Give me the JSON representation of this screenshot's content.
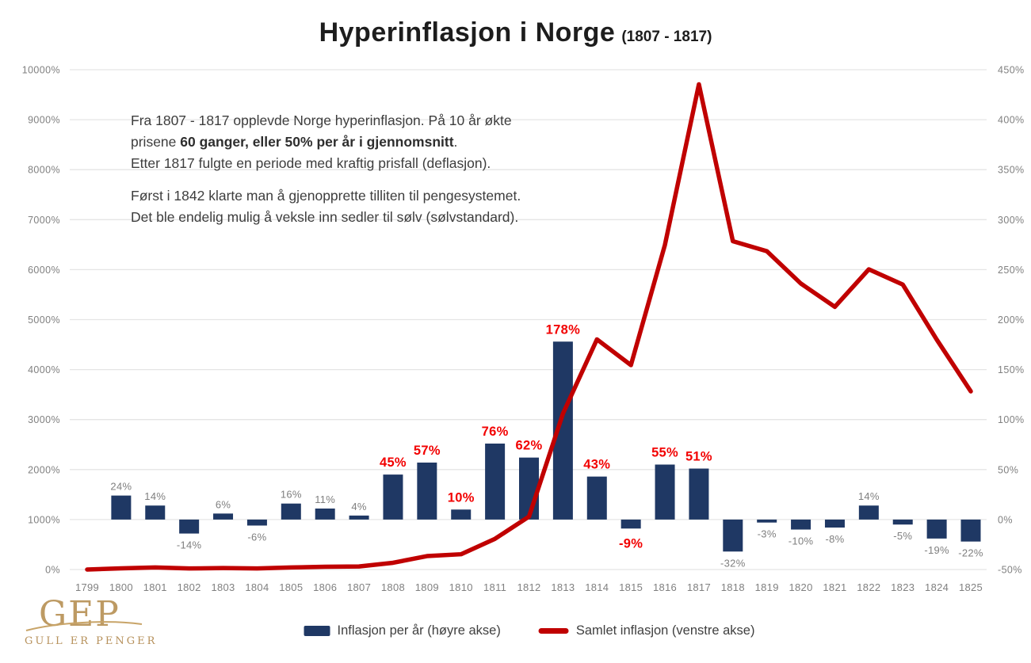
{
  "header": {
    "title": "Hyperinflasjon i Norge",
    "subtitle": "(1807 - 1817)"
  },
  "annotation": {
    "line1": "Fra 1807 - 1817 opplevde Norge hyperinflasjon. På 10 år økte",
    "line2_prefix": "prisene ",
    "line2_bold": "60 ganger, eller 50% per år i gjennomsnitt",
    "line2_suffix": ".",
    "line3": "Etter 1817 fulgte en periode med kraftig prisfall (deflasjon).",
    "line4": "Først i 1842 klarte man å gjenopprette tilliten til pengesystemet.",
    "line5": "Det ble endelig mulig å veksle inn sedler til sølv (sølvstandard)."
  },
  "legend": {
    "bar_label": "Inflasjon per år (høyre akse)",
    "line_label": "Samlet inflasjon (venstre akse)"
  },
  "logo": {
    "acronym": "GEP",
    "tagline": "GULL ER PENGER"
  },
  "colors": {
    "bar": "#1f3864",
    "line": "#c00000",
    "highlight_label": "#f20000",
    "muted_label": "#7f7f7f",
    "grid": "#e5e5e5",
    "axis_text": "#808080"
  },
  "chart_data": {
    "type": "bar+line combo",
    "title": "Hyperinflasjon i Norge (1807 - 1817)",
    "grid": "horizontal only",
    "legend_position": "bottom",
    "categories": [
      "1799",
      "1800",
      "1801",
      "1802",
      "1803",
      "1804",
      "1805",
      "1806",
      "1807",
      "1808",
      "1809",
      "1810",
      "1811",
      "1812",
      "1813",
      "1814",
      "1815",
      "1816",
      "1817",
      "1818",
      "1819",
      "1820",
      "1821",
      "1822",
      "1823",
      "1824",
      "1825"
    ],
    "series": [
      {
        "name": "Inflasjon per år (høyre akse)",
        "type": "bar",
        "axis": "right",
        "color": "#1f3864",
        "values": [
          null,
          24,
          14,
          -14,
          6,
          -6,
          16,
          11,
          4,
          45,
          57,
          10,
          76,
          62,
          178,
          43,
          -9,
          55,
          51,
          -32,
          -3,
          -10,
          -8,
          14,
          -5,
          -19,
          -22
        ]
      },
      {
        "name": "Samlet inflasjon (venstre akse)",
        "type": "line",
        "axis": "left",
        "color": "#c00000",
        "values": [
          0,
          24,
          41,
          22,
          29,
          21,
          41,
          56,
          62,
          135,
          269,
          306,
          615,
          1058,
          3120,
          4604,
          4090,
          6494,
          9707,
          6569,
          6369,
          5722,
          5256,
          6006,
          5701,
          4599,
          3565
        ]
      }
    ],
    "left_axis": {
      "min": 0,
      "max": 10000,
      "step": 1000,
      "suffix": "%"
    },
    "right_axis": {
      "min": -50,
      "max": 450,
      "step": 50,
      "suffix": "%"
    },
    "highlight_categories": [
      "1808",
      "1809",
      "1810",
      "1811",
      "1812",
      "1813",
      "1814",
      "1815",
      "1816",
      "1817"
    ]
  }
}
